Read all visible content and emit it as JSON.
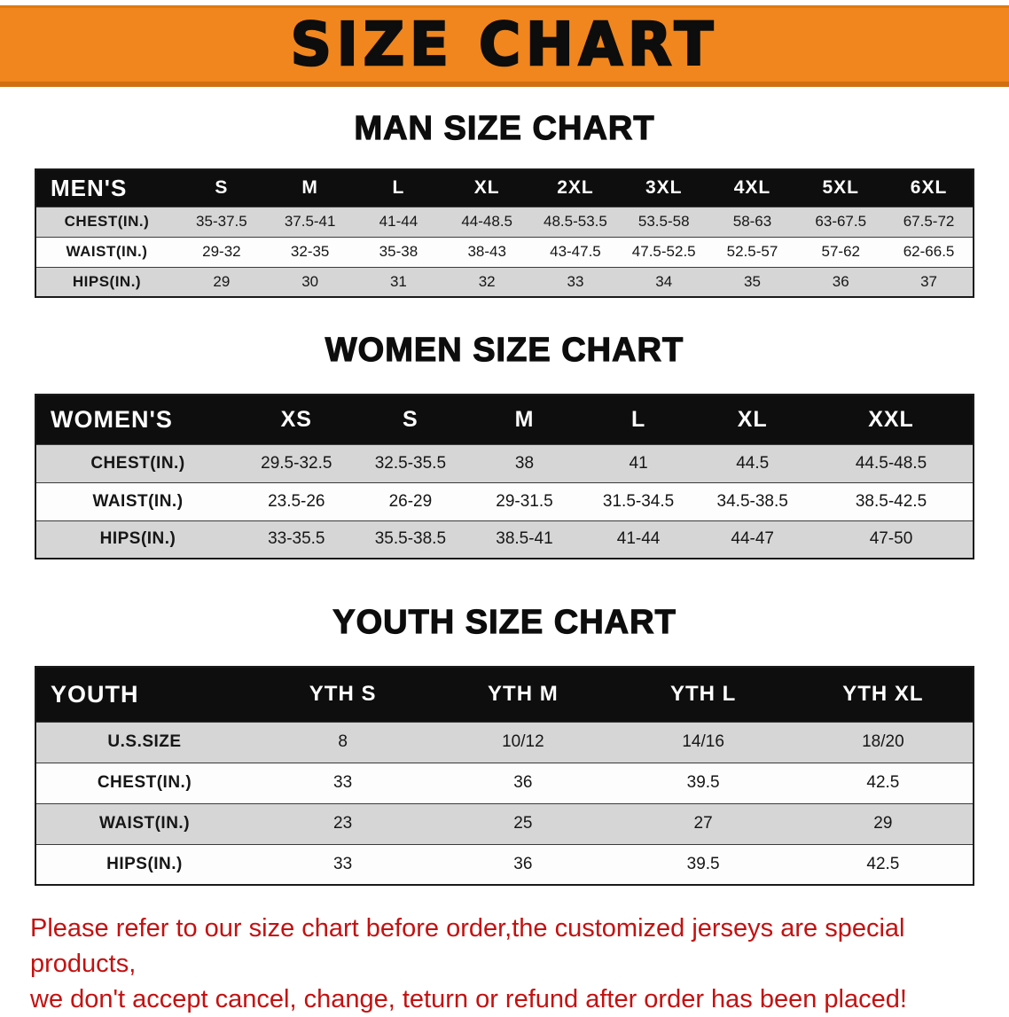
{
  "banner": {
    "title": "SIZE CHART",
    "bg_color": "#f0861d"
  },
  "sections": [
    {
      "id": "men",
      "heading": "MAN SIZE CHART",
      "table": {
        "header": [
          "MEN'S",
          "S",
          "M",
          "L",
          "XL",
          "2XL",
          "3XL",
          "4XL",
          "5XL",
          "6XL"
        ],
        "rows": [
          [
            "CHEST(IN.)",
            "35-37.5",
            "37.5-41",
            "41-44",
            "44-48.5",
            "48.5-53.5",
            "53.5-58",
            "58-63",
            "63-67.5",
            "67.5-72"
          ],
          [
            "WAIST(IN.)",
            "29-32",
            "32-35",
            "35-38",
            "38-43",
            "43-47.5",
            "47.5-52.5",
            "52.5-57",
            "57-62",
            "62-66.5"
          ],
          [
            "HIPS(IN.)",
            "29",
            "30",
            "31",
            "32",
            "33",
            "34",
            "35",
            "36",
            "37"
          ]
        ]
      }
    },
    {
      "id": "women",
      "heading": "WOMEN SIZE CHART",
      "table": {
        "header": [
          "WOMEN'S",
          "XS",
          "S",
          "M",
          "L",
          "XL",
          "XXL"
        ],
        "rows": [
          [
            "CHEST(IN.)",
            "29.5-32.5",
            "32.5-35.5",
            "38",
            "41",
            "44.5",
            "44.5-48.5"
          ],
          [
            "WAIST(IN.)",
            "23.5-26",
            "26-29",
            "29-31.5",
            "31.5-34.5",
            "34.5-38.5",
            "38.5-42.5"
          ],
          [
            "HIPS(IN.)",
            "33-35.5",
            "35.5-38.5",
            "38.5-41",
            "41-44",
            "44-47",
            "47-50"
          ]
        ]
      }
    },
    {
      "id": "youth",
      "heading": "YOUTH SIZE CHART",
      "table": {
        "header": [
          "YOUTH",
          "YTH S",
          "YTH M",
          "YTH L",
          "YTH XL"
        ],
        "rows": [
          [
            "U.S.SIZE",
            "8",
            "10/12",
            "14/16",
            "18/20"
          ],
          [
            "CHEST(IN.)",
            "33",
            "36",
            "39.5",
            "42.5"
          ],
          [
            "WAIST(IN.)",
            "23",
            "25",
            "27",
            "29"
          ],
          [
            "HIPS(IN.)",
            "33",
            "36",
            "39.5",
            "42.5"
          ]
        ]
      }
    }
  ],
  "footer_note": {
    "line1": "Please refer to our size chart before order,the customized jerseys are special products,",
    "line2": "we don't accept cancel, change, teturn or refund after order has been placed!",
    "color": "#c41111"
  }
}
